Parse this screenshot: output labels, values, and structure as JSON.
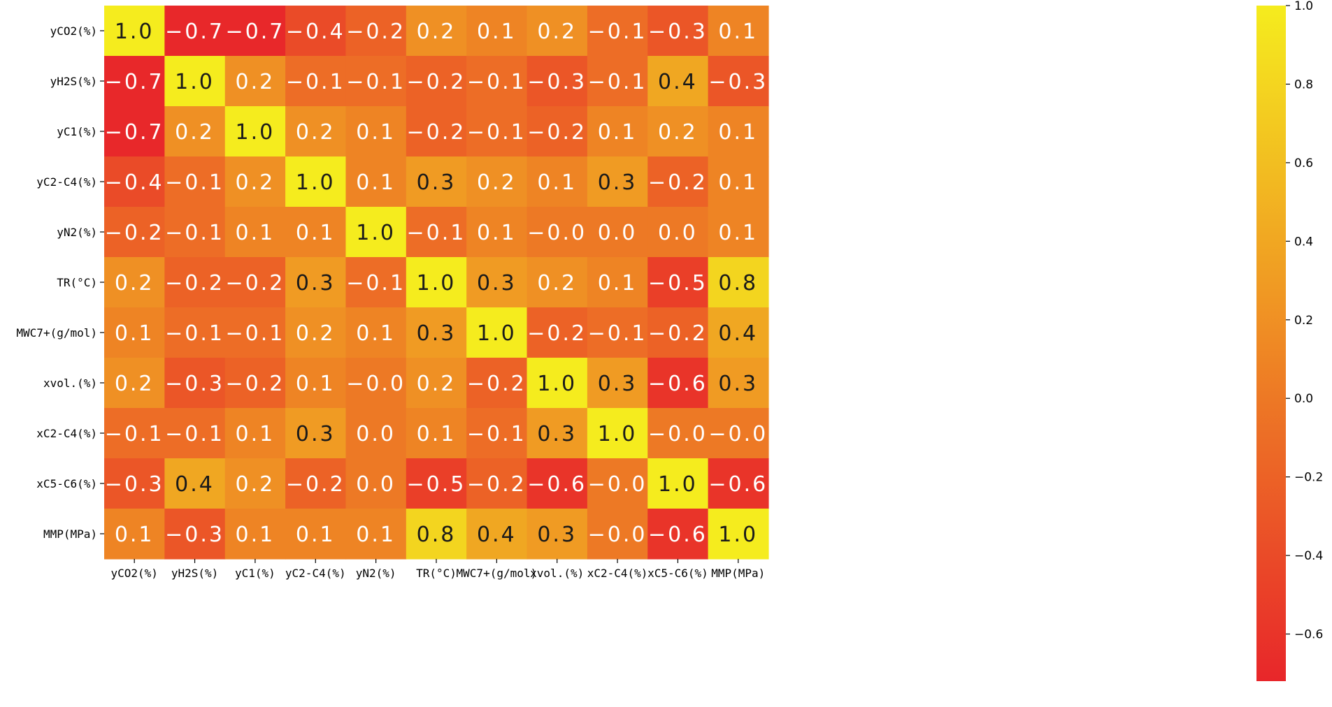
{
  "chart_data": {
    "type": "heatmap",
    "title": "",
    "xlabel": "",
    "ylabel": "",
    "x_labels": [
      "yCO2(%)",
      "yH2S(%)",
      "yC1(%)",
      "yC2-C4(%)",
      "yN2(%)",
      "TR(°C)",
      "MWC7+(g/mol)",
      "xvol.(%)",
      "xC2-C4(%)",
      "xC5-C6(%)",
      "MMP(MPa)"
    ],
    "y_labels": [
      "yCO2(%)",
      "yH2S(%)",
      "yC1(%)",
      "yC2-C4(%)",
      "yN2(%)",
      "TR(°C)",
      "MWC7+(g/mol)",
      "xvol.(%)",
      "xC2-C4(%)",
      "xC5-C6(%)",
      "MMP(MPa)"
    ],
    "values": [
      [
        1.0,
        -0.7,
        -0.7,
        -0.4,
        -0.2,
        0.2,
        0.1,
        0.2,
        -0.1,
        -0.3,
        0.1
      ],
      [
        -0.7,
        1.0,
        0.2,
        -0.1,
        -0.1,
        -0.2,
        -0.1,
        -0.3,
        -0.1,
        0.4,
        -0.3
      ],
      [
        -0.7,
        0.2,
        1.0,
        0.2,
        0.1,
        -0.2,
        -0.1,
        -0.2,
        0.1,
        0.2,
        0.1
      ],
      [
        -0.4,
        -0.1,
        0.2,
        1.0,
        0.1,
        0.3,
        0.2,
        0.1,
        0.3,
        -0.2,
        0.1
      ],
      [
        -0.2,
        -0.1,
        0.1,
        0.1,
        1.0,
        -0.1,
        0.1,
        -0.0,
        0.0,
        0.0,
        0.1
      ],
      [
        0.2,
        -0.2,
        -0.2,
        0.3,
        -0.1,
        1.0,
        0.3,
        0.2,
        0.1,
        -0.5,
        0.8
      ],
      [
        0.1,
        -0.1,
        -0.1,
        0.2,
        0.1,
        0.3,
        1.0,
        -0.2,
        -0.1,
        -0.2,
        0.4
      ],
      [
        0.2,
        -0.3,
        -0.2,
        0.1,
        -0.0,
        0.2,
        -0.2,
        1.0,
        0.3,
        -0.6,
        0.3
      ],
      [
        -0.1,
        -0.1,
        0.1,
        0.3,
        0.0,
        0.1,
        -0.1,
        0.3,
        1.0,
        -0.0,
        -0.0
      ],
      [
        -0.3,
        0.4,
        0.2,
        -0.2,
        0.0,
        -0.5,
        -0.2,
        -0.6,
        -0.0,
        1.0,
        -0.6
      ],
      [
        0.1,
        -0.3,
        0.1,
        0.1,
        0.1,
        0.8,
        0.4,
        0.3,
        -0.0,
        -0.6,
        1.0
      ]
    ],
    "value_labels": [
      [
        "1.0",
        "-0.7",
        "-0.7",
        "-0.4",
        "-0.2",
        "0.2",
        "0.1",
        "0.2",
        "-0.1",
        "-0.3",
        "0.1"
      ],
      [
        "-0.7",
        "1.0",
        "0.2",
        "-0.1",
        "-0.1",
        "-0.2",
        "-0.1",
        "-0.3",
        "-0.1",
        "0.4",
        "-0.3"
      ],
      [
        "-0.7",
        "0.2",
        "1.0",
        "0.2",
        "0.1",
        "-0.2",
        "-0.1",
        "-0.2",
        "0.1",
        "0.2",
        "0.1"
      ],
      [
        "-0.4",
        "-0.1",
        "0.2",
        "1.0",
        "0.1",
        "0.3",
        "0.2",
        "0.1",
        "0.3",
        "-0.2",
        "0.1"
      ],
      [
        "-0.2",
        "-0.1",
        "0.1",
        "0.1",
        "1.0",
        "-0.1",
        "0.1",
        "-0.0",
        "0.0",
        "0.0",
        "0.1"
      ],
      [
        "0.2",
        "-0.2",
        "-0.2",
        "0.3",
        "-0.1",
        "1.0",
        "0.3",
        "0.2",
        "0.1",
        "-0.5",
        "0.8"
      ],
      [
        "0.1",
        "-0.1",
        "-0.1",
        "0.2",
        "0.1",
        "0.3",
        "1.0",
        "-0.2",
        "-0.1",
        "-0.2",
        "0.4"
      ],
      [
        "0.2",
        "-0.3",
        "-0.2",
        "0.1",
        "-0.0",
        "0.2",
        "-0.2",
        "1.0",
        "0.3",
        "-0.6",
        "0.3"
      ],
      [
        "-0.1",
        "-0.1",
        "0.1",
        "0.3",
        "0.0",
        "0.1",
        "-0.1",
        "0.3",
        "1.0",
        "-0.0",
        "-0.0"
      ],
      [
        "-0.3",
        "0.4",
        "0.2",
        "-0.2",
        "0.0",
        "-0.5",
        "-0.2",
        "-0.6",
        "-0.0",
        "1.0",
        "-0.6"
      ],
      [
        "0.1",
        "-0.3",
        "0.1",
        "0.1",
        "0.1",
        "0.8",
        "0.4",
        "0.3",
        "-0.0",
        "-0.6",
        "1.0"
      ]
    ],
    "colorbar": {
      "colormap": "autumn",
      "vmin": -0.72,
      "vmax": 1.0,
      "ticks": [
        1.0,
        0.8,
        0.6,
        0.4,
        0.2,
        0.0,
        -0.2,
        -0.4,
        -0.6
      ],
      "tick_labels": [
        "1.0",
        "0.8",
        "0.6",
        "0.4",
        "0.2",
        "0.0",
        "−0.2",
        "−0.4",
        "−0.6"
      ]
    },
    "colors": {
      "low": "#e8262a",
      "mid": "#f07a22",
      "high": "#f5ec1e",
      "dark_text": "#1a1a1a",
      "light_text": "#ffffff"
    }
  }
}
